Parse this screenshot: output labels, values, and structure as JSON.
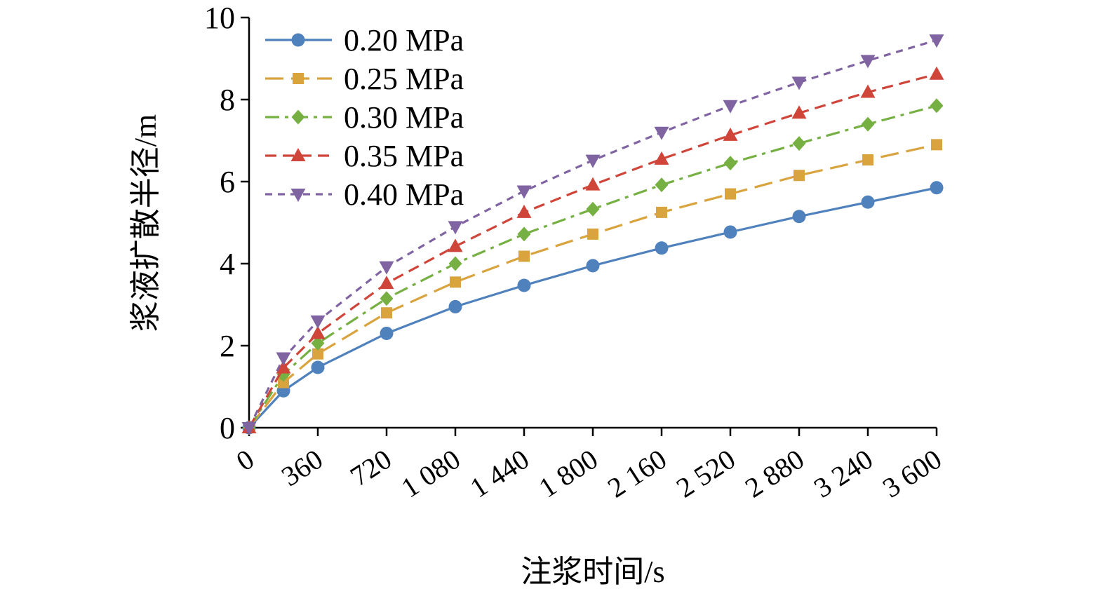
{
  "chart_data": {
    "type": "line",
    "title": "",
    "xlabel": "注浆时间/s",
    "ylabel": "浆液扩散半径/m",
    "xlim": [
      0,
      3600
    ],
    "ylim": [
      0,
      10
    ],
    "grid": false,
    "legend_position": "top-left",
    "x_ticks": [
      0,
      360,
      720,
      1080,
      1440,
      1800,
      2160,
      2520,
      2880,
      3240,
      3600
    ],
    "x_tick_labels": [
      "0",
      "360",
      "720",
      "1 080",
      "1 440",
      "1 800",
      "2 160",
      "2 520",
      "2 880",
      "3 240",
      "3 600"
    ],
    "y_ticks": [
      0,
      2,
      4,
      6,
      8,
      10
    ],
    "y_tick_labels": [
      "0",
      "2",
      "4",
      "6",
      "8",
      "10"
    ],
    "x": [
      0,
      180,
      360,
      720,
      1080,
      1440,
      1800,
      2160,
      2520,
      2880,
      3240,
      3600
    ],
    "series": [
      {
        "name": "0.20 MPa",
        "color": "#4f81bd",
        "marker": "circle",
        "dash": "solid",
        "values": [
          0,
          0.9,
          1.47,
          2.3,
          2.95,
          3.47,
          3.95,
          4.38,
          4.77,
          5.15,
          5.5,
          5.85
        ]
      },
      {
        "name": "0.25 MPa",
        "color": "#d9a33d",
        "marker": "square",
        "dash": "long-dash",
        "values": [
          0,
          1.1,
          1.8,
          2.8,
          3.55,
          4.18,
          4.72,
          5.25,
          5.7,
          6.15,
          6.53,
          6.9
        ]
      },
      {
        "name": "0.30 MPa",
        "color": "#76b043",
        "marker": "diamond",
        "dash": "dash-dot",
        "values": [
          0,
          1.3,
          2.06,
          3.15,
          4.0,
          4.72,
          5.33,
          5.92,
          6.45,
          6.93,
          7.4,
          7.85
        ]
      },
      {
        "name": "0.35 MPa",
        "color": "#d0453a",
        "marker": "triangle-up",
        "dash": "dash",
        "values": [
          0,
          1.46,
          2.3,
          3.52,
          4.42,
          5.25,
          5.92,
          6.55,
          7.13,
          7.67,
          8.18,
          8.62
        ]
      },
      {
        "name": "0.40 MPa",
        "color": "#8064a2",
        "marker": "triangle-down",
        "dash": "short-dash",
        "values": [
          0,
          1.7,
          2.6,
          3.92,
          4.9,
          5.77,
          6.52,
          7.2,
          7.85,
          8.42,
          8.95,
          9.45
        ]
      }
    ]
  }
}
